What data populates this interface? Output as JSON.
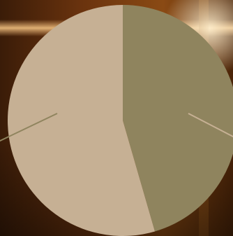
{
  "chart_data": {
    "type": "pie",
    "title": "",
    "slices": [
      {
        "value": 45.5,
        "color": "#8f845e"
      },
      {
        "value": 54.5,
        "color": "#c6b094"
      }
    ],
    "start_angle_deg": 0,
    "direction": "clockwise",
    "legend": "none"
  },
  "colors": {
    "background_dark": "#2a160a",
    "background_warm": "#7a3c10",
    "background_highlight": "#e8b070",
    "leader_line_left": "#8f845e",
    "leader_line_right": "#c6b094"
  }
}
